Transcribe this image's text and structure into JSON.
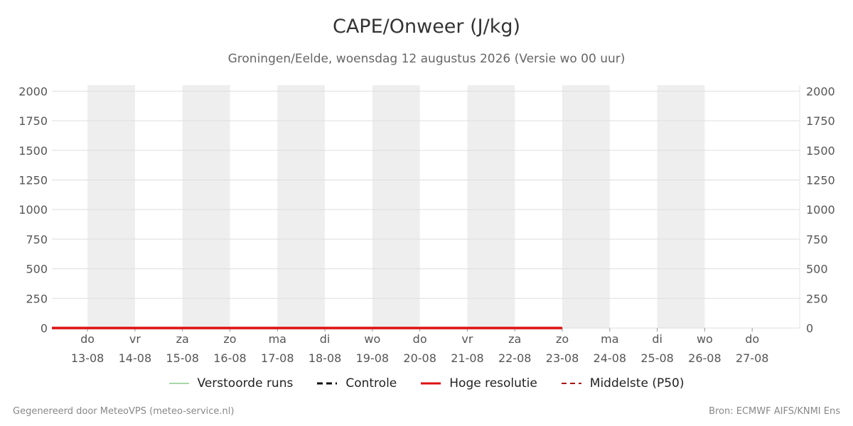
{
  "title": "CAPE/Onweer (J/kg)",
  "subtitle": "Groningen/Eelde, woensdag 12 augustus 2026 (Versie wo 00 uur)",
  "footer_left": "Gegenereerd door MeteoVPS (meteo-service.nl)",
  "footer_right": "Bron: ECMWF AIFS/KNMI Ens",
  "legend": [
    {
      "label": "Verstoorde runs",
      "color": "#4caf50",
      "style": "thin"
    },
    {
      "label": "Controle",
      "color": "#111111",
      "style": "dashed"
    },
    {
      "label": "Hoge resolutie",
      "color": "#dd1111",
      "style": "solid"
    },
    {
      "label": "Middelste (P50)",
      "color": "#aa1111",
      "style": "dashed"
    }
  ],
  "colors": {
    "runs": "#3aa64a",
    "controle": "#111111",
    "hires": "#dd1111",
    "p50": "#aa1111",
    "shade": "#eeeeee",
    "grid": "#dddddd"
  },
  "chart_data": {
    "type": "line",
    "title": "CAPE/Onweer (J/kg)",
    "ylim": [
      0,
      2050
    ],
    "yticks": [
      0,
      250,
      500,
      750,
      1000,
      1250,
      1500,
      1750,
      2000
    ],
    "x_range": [
      -0.75,
      15
    ],
    "x_ticks": [
      {
        "day": "do",
        "date": "13-08"
      },
      {
        "day": "vr",
        "date": "14-08"
      },
      {
        "day": "za",
        "date": "15-08"
      },
      {
        "day": "zo",
        "date": "16-08"
      },
      {
        "day": "ma",
        "date": "17-08"
      },
      {
        "day": "di",
        "date": "18-08"
      },
      {
        "day": "wo",
        "date": "19-08"
      },
      {
        "day": "do",
        "date": "20-08"
      },
      {
        "day": "vr",
        "date": "21-08"
      },
      {
        "day": "za",
        "date": "22-08"
      },
      {
        "day": "zo",
        "date": "23-08"
      },
      {
        "day": "ma",
        "date": "24-08"
      },
      {
        "day": "di",
        "date": "25-08"
      },
      {
        "day": "wo",
        "date": "26-08"
      },
      {
        "day": "do",
        "date": "27-08"
      }
    ],
    "shaded_days": [
      0,
      2,
      4,
      6,
      8,
      10,
      12
    ],
    "series_hires": {
      "name": "Hoge resolutie",
      "x": [
        -0.75,
        -0.5,
        -0.25,
        0,
        0.25,
        0.5,
        0.75,
        1,
        1.25,
        1.5,
        1.75,
        2,
        2.25,
        2.5,
        2.75,
        3,
        3.25,
        3.5,
        3.75,
        4,
        4.25,
        4.5,
        4.75,
        5,
        5.25,
        5.5,
        5.75,
        6,
        6.25,
        6.5,
        6.75,
        7,
        7.25,
        7.5,
        7.75,
        8,
        8.25,
        8.5,
        8.75,
        9,
        9.25,
        9.5,
        9.75,
        10
      ],
      "y": [
        0,
        0,
        0,
        0,
        0,
        0,
        0,
        0,
        0,
        0,
        0,
        0,
        0,
        0,
        0,
        0,
        0,
        0,
        0,
        0,
        0,
        0,
        0,
        0,
        0,
        0,
        0,
        0,
        0,
        0,
        0,
        0,
        0,
        0,
        0,
        0,
        0,
        0,
        0,
        0,
        0,
        0,
        0,
        0
      ]
    },
    "series_controle": {
      "name": "Controle"
    },
    "series_p50": {
      "name": "Middelste (P50)"
    }
  }
}
